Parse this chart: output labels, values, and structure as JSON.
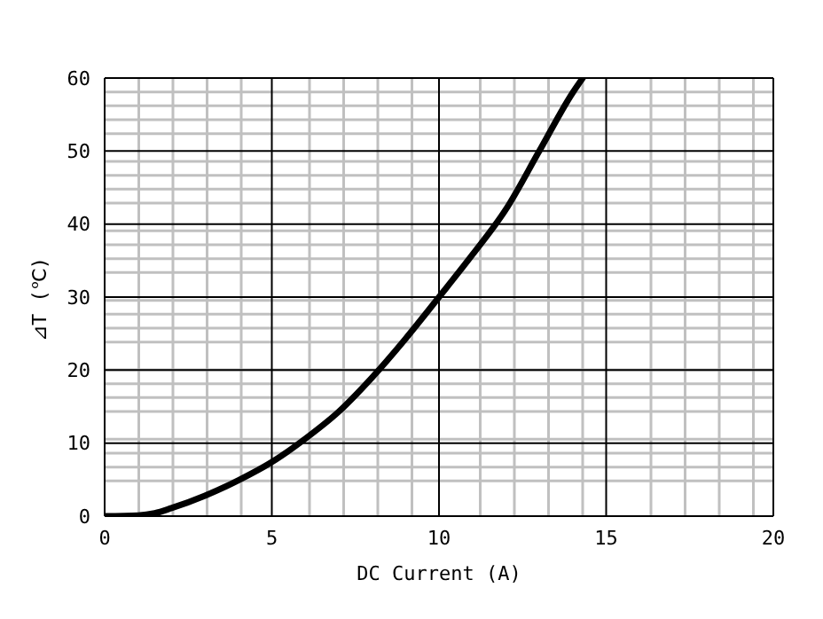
{
  "chart_data": {
    "type": "line",
    "xlabel": "DC Current (A)",
    "ylabel": "⊿T (℃)",
    "x": [
      0,
      1,
      1.5,
      2,
      3,
      4,
      5,
      6,
      7,
      8,
      9,
      10,
      11,
      12,
      13,
      14,
      14.3
    ],
    "series": [
      {
        "color": "#000000",
        "values": [
          0,
          0.1,
          0.4,
          1.1,
          2.8,
          4.9,
          7.4,
          10.6,
          14.3,
          19,
          24.3,
          30,
          35.8,
          42,
          50,
          58,
          60
        ]
      }
    ],
    "xlim": [
      0,
      20
    ],
    "xticks": [
      0,
      5,
      10,
      15,
      20
    ],
    "ylim": [
      0,
      60
    ],
    "yticks": [
      0,
      10,
      20,
      30,
      40,
      50,
      60
    ],
    "grid": true,
    "marker": "none",
    "line_style": "solid"
  }
}
